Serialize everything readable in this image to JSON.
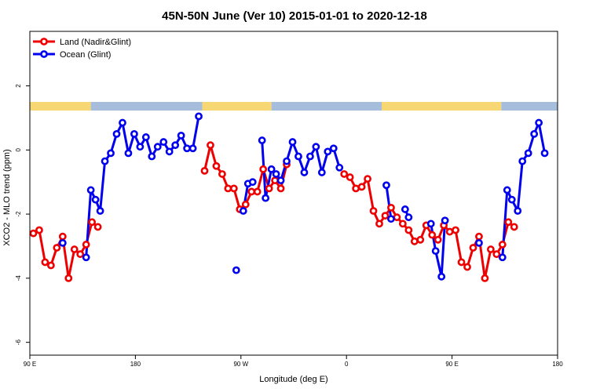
{
  "chart_data": {
    "type": "line",
    "title": "45N-50N June (Ver 10)   2015-01-01 to 2020-12-18",
    "xlabel": "Longitude (deg E)",
    "ylabel": "XCO2 - MLO trend (ppm)",
    "x_axis": {
      "unit": "deg E",
      "range_east": [
        90,
        450
      ],
      "ticks": [
        {
          "value": 90,
          "label": "90 E"
        },
        {
          "value": 180,
          "label": "180"
        },
        {
          "value": 270,
          "label": "90 W"
        },
        {
          "value": 360,
          "label": "0"
        },
        {
          "value": 450,
          "label": "90 E"
        },
        {
          "value": 540,
          "label": "180"
        }
      ],
      "xlim": [
        90,
        540
      ]
    },
    "y_axis": {
      "ylim": [
        -6.4,
        3.7
      ],
      "ticks": [
        -6,
        -4,
        -2,
        0,
        2
      ]
    },
    "grid": false,
    "legend_position": "top-left",
    "land_mask_colors": {
      "land": "#f7d774",
      "ocean": "#a6bddb"
    },
    "land_mask_segments": [
      {
        "from": 90,
        "to": 142,
        "kind": "land"
      },
      {
        "from": 142,
        "to": 237,
        "kind": "ocean"
      },
      {
        "from": 237,
        "to": 296,
        "kind": "land"
      },
      {
        "from": 296,
        "to": 390,
        "kind": "ocean"
      },
      {
        "from": 390,
        "to": 492,
        "kind": "land"
      },
      {
        "from": 492,
        "to": 540,
        "kind": "ocean"
      }
    ],
    "series": [
      {
        "name": "Land (Nadir&Glint)",
        "color": "#ee0000",
        "segments": [
          [
            [
              93,
              -2.6
            ],
            [
              98,
              -2.5
            ],
            [
              103,
              -3.5
            ],
            [
              108,
              -3.6
            ],
            [
              113,
              -3.05
            ],
            [
              118,
              -2.7
            ],
            [
              123,
              -4.0
            ],
            [
              128,
              -3.1
            ],
            [
              133,
              -3.25
            ],
            [
              138,
              -2.95
            ],
            [
              143,
              -2.25
            ],
            [
              148,
              -2.4
            ]
          ],
          [
            [
              239,
              -0.65
            ],
            [
              244,
              0.15
            ],
            [
              249,
              -0.5
            ],
            [
              254,
              -0.75
            ],
            [
              259,
              -1.2
            ],
            [
              264,
              -1.2
            ],
            [
              269,
              -1.85
            ],
            [
              274,
              -1.7
            ],
            [
              279,
              -1.3
            ],
            [
              284,
              -1.3
            ],
            [
              289,
              -0.6
            ],
            [
              294,
              -1.2
            ],
            [
              299,
              -0.95
            ],
            [
              304,
              -1.2
            ],
            [
              309,
              -0.45
            ]
          ],
          [
            [
              358,
              -0.75
            ],
            [
              363,
              -0.85
            ],
            [
              368,
              -1.2
            ],
            [
              373,
              -1.15
            ],
            [
              378,
              -0.9
            ],
            [
              383,
              -1.9
            ],
            [
              388,
              -2.3
            ],
            [
              393,
              -2.05
            ],
            [
              398,
              -1.8
            ],
            [
              403,
              -2.1
            ],
            [
              408,
              -2.3
            ],
            [
              413,
              -2.5
            ],
            [
              418,
              -2.85
            ],
            [
              423,
              -2.8
            ],
            [
              428,
              -2.35
            ],
            [
              433,
              -2.65
            ],
            [
              438,
              -2.8
            ],
            [
              443,
              -2.35
            ],
            [
              448,
              -2.55
            ],
            [
              453,
              -2.5
            ],
            [
              458,
              -3.5
            ],
            [
              463,
              -3.65
            ],
            [
              468,
              -3.05
            ],
            [
              473,
              -2.7
            ],
            [
              478,
              -4.0
            ],
            [
              483,
              -3.1
            ],
            [
              488,
              -3.25
            ],
            [
              493,
              -2.95
            ],
            [
              498,
              -2.25
            ],
            [
              503,
              -2.4
            ]
          ]
        ]
      },
      {
        "name": "Ocean (Glint)",
        "color": "#0000ee",
        "segments": [
          [
            [
              118,
              -2.9
            ]
          ],
          [
            [
              138,
              -3.35
            ],
            [
              142,
              -1.25
            ],
            [
              146,
              -1.55
            ],
            [
              150,
              -1.9
            ],
            [
              154,
              -0.35
            ],
            [
              159,
              -0.1
            ],
            [
              164,
              0.5
            ],
            [
              169,
              0.85
            ],
            [
              174,
              -0.1
            ],
            [
              179,
              0.5
            ],
            [
              184,
              0.1
            ],
            [
              189,
              0.4
            ],
            [
              194,
              -0.2
            ],
            [
              199,
              0.1
            ],
            [
              204,
              0.25
            ],
            [
              209,
              -0.05
            ],
            [
              214,
              0.15
            ],
            [
              219,
              0.45
            ],
            [
              224,
              0.05
            ],
            [
              229,
              0.05
            ],
            [
              234,
              1.05
            ]
          ],
          [
            [
              266,
              -3.75
            ]
          ],
          [
            [
              272,
              -1.9
            ],
            [
              276,
              -1.05
            ],
            [
              280,
              -1.0
            ]
          ],
          [
            [
              288,
              0.3
            ],
            [
              291,
              -1.5
            ],
            [
              296,
              -0.6
            ],
            [
              300,
              -0.75
            ],
            [
              304,
              -0.95
            ],
            [
              309,
              -0.35
            ],
            [
              314,
              0.25
            ],
            [
              319,
              -0.2
            ],
            [
              324,
              -0.7
            ],
            [
              329,
              -0.2
            ],
            [
              334,
              0.1
            ],
            [
              339,
              -0.7
            ],
            [
              344,
              -0.05
            ],
            [
              349,
              0.05
            ],
            [
              354,
              -0.55
            ]
          ],
          [
            [
              394,
              -1.1
            ],
            [
              398,
              -2.15
            ]
          ],
          [
            [
              410,
              -1.85
            ],
            [
              413,
              -2.1
            ]
          ],
          [
            [
              432,
              -2.3
            ],
            [
              436,
              -3.15
            ],
            [
              441,
              -3.95
            ],
            [
              444,
              -2.2
            ]
          ],
          [
            [
              473,
              -2.9
            ]
          ],
          [
            [
              493,
              -3.35
            ],
            [
              497,
              -1.25
            ],
            [
              501,
              -1.55
            ],
            [
              506,
              -1.9
            ],
            [
              510,
              -0.35
            ],
            [
              515,
              -0.1
            ],
            [
              520,
              0.5
            ],
            [
              524,
              0.85
            ],
            [
              529,
              -0.1
            ]
          ]
        ]
      }
    ]
  }
}
